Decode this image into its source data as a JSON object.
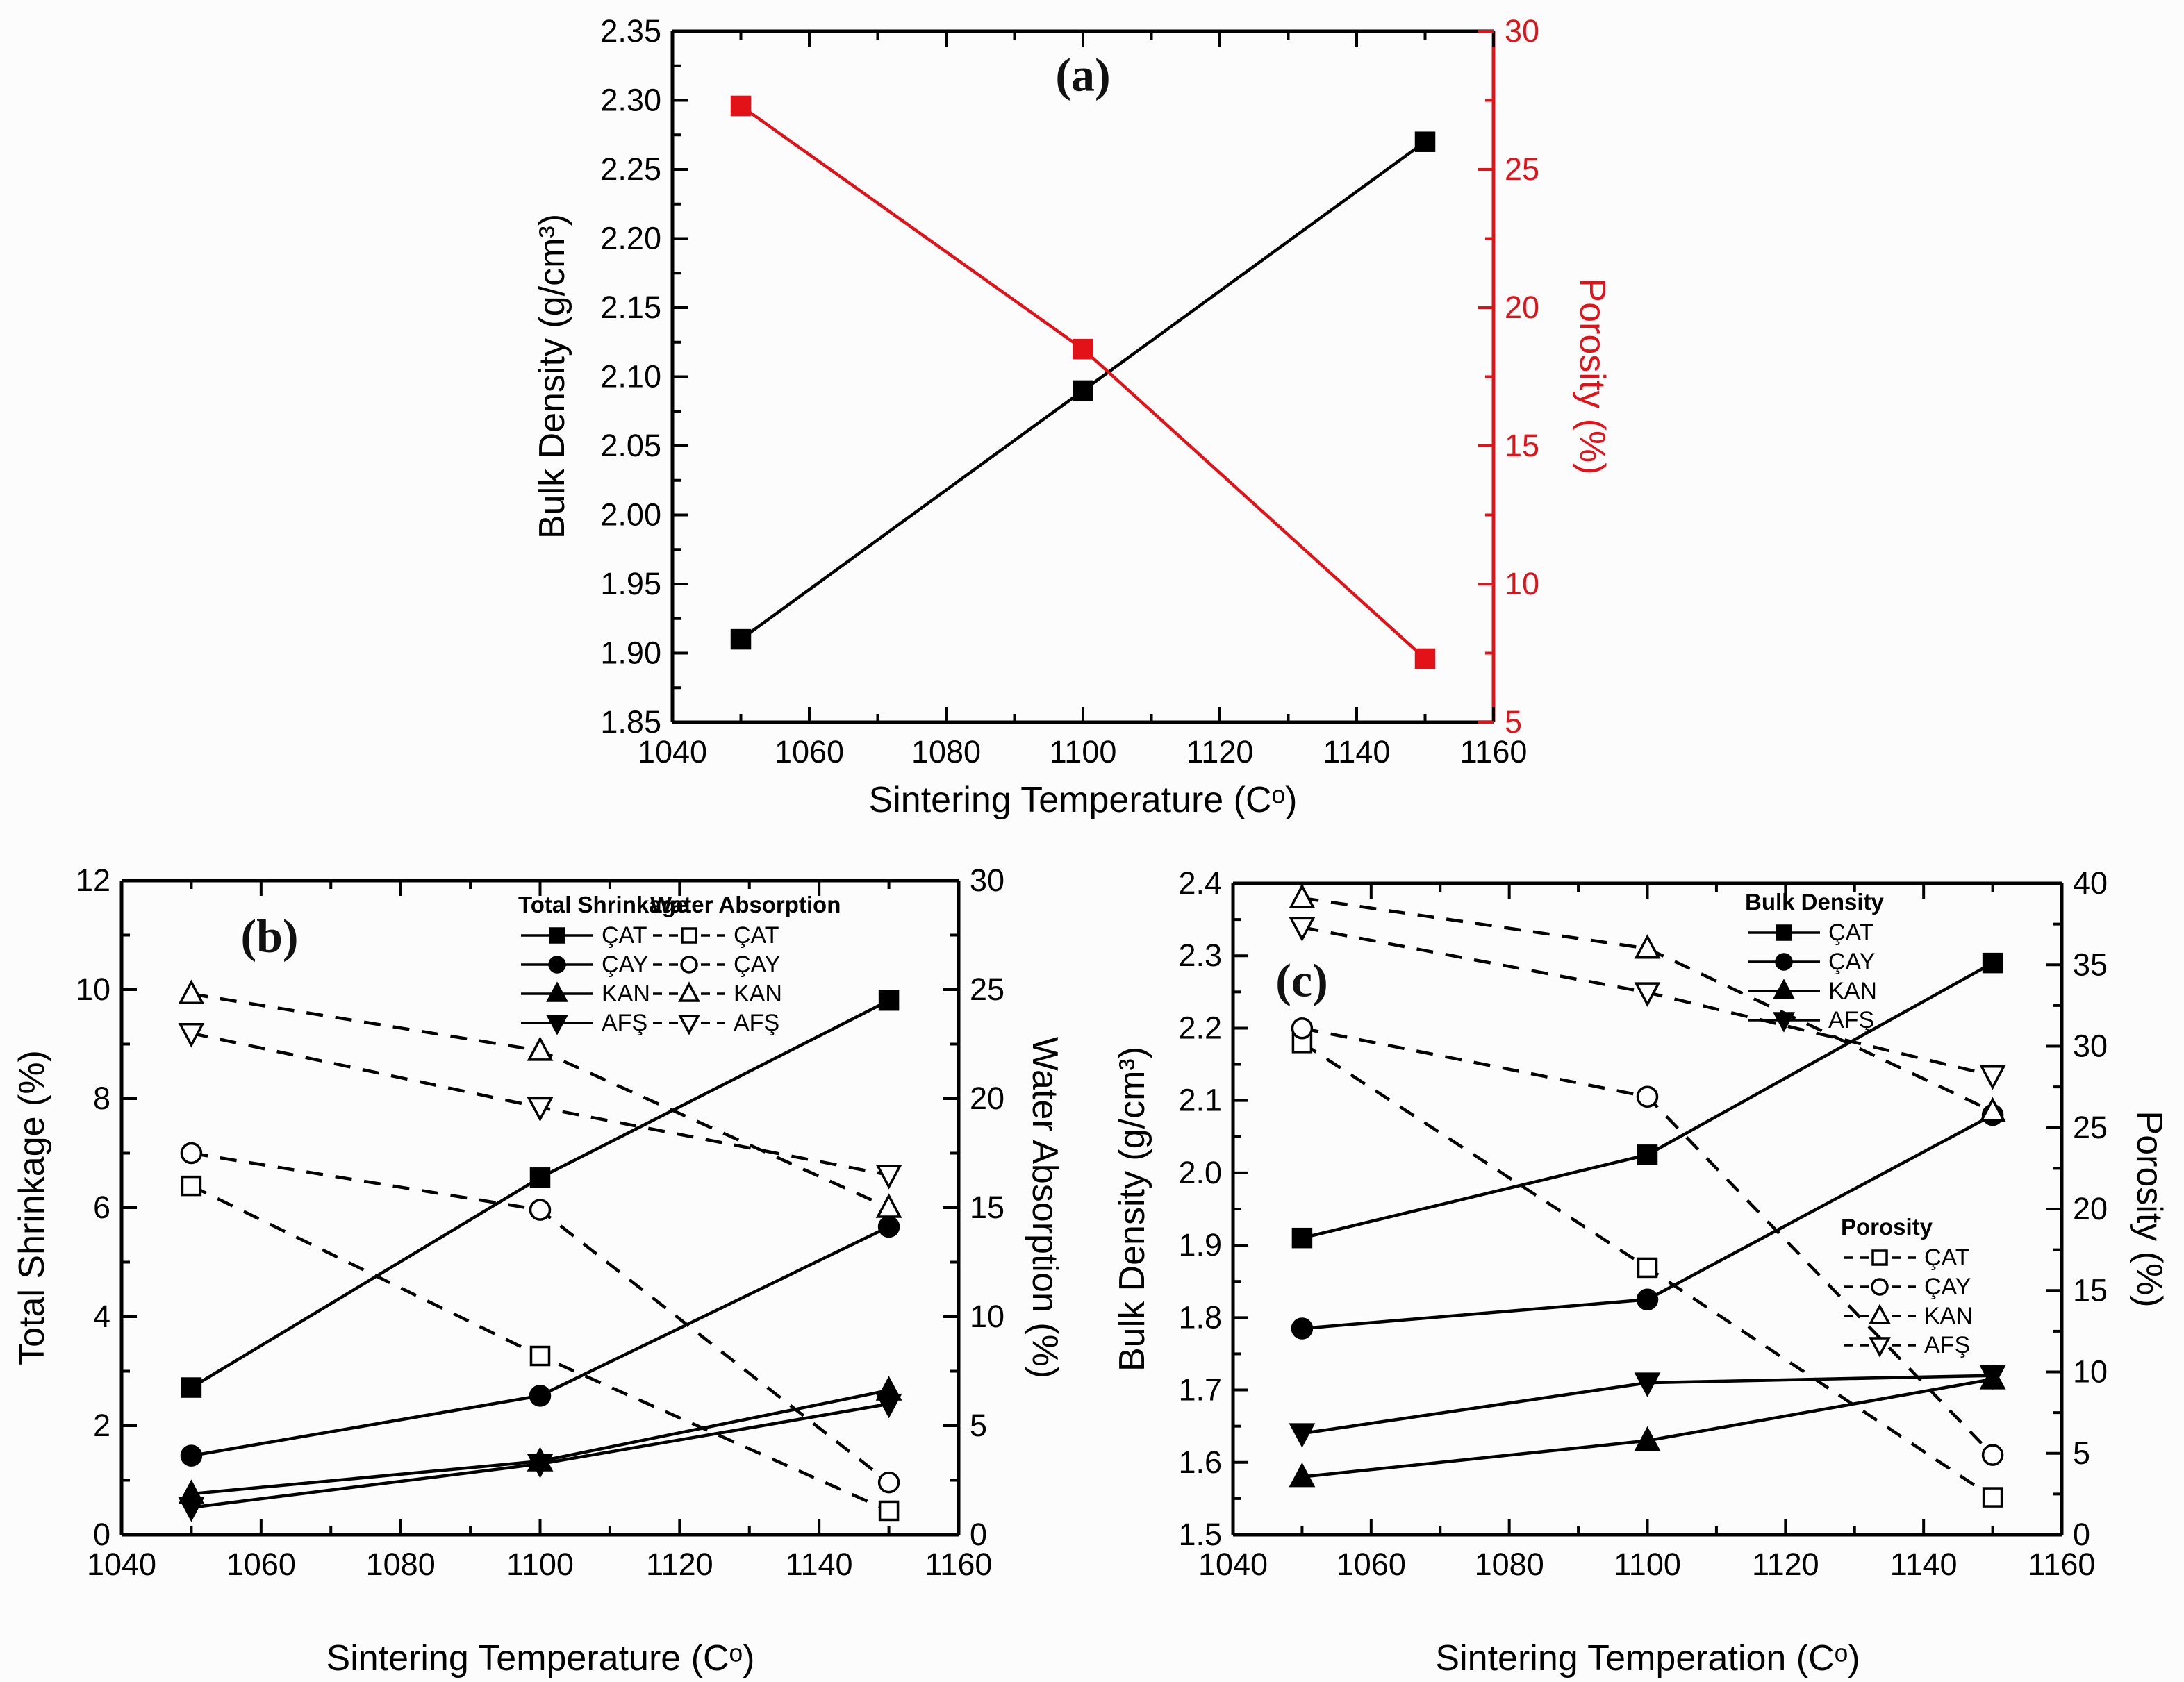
{
  "accent_red": "#e31219",
  "ink_black": "#000000",
  "chart_data": [
    {
      "id": "a",
      "type": "line",
      "panel_label": "(a)",
      "xlabel": "Sintering Temperature (Cᵒ)",
      "x_range": [
        1040,
        1160
      ],
      "x_ticks": [
        "1040",
        "1060",
        "1080",
        "1100",
        "1120",
        "1140",
        "1160"
      ],
      "x_minor_step": 10,
      "x": [
        1050,
        1100,
        1150
      ],
      "left_axis": {
        "label": "Bulk Density (g/cm³)",
        "range": [
          1.85,
          2.35
        ],
        "ticks": [
          "1.85",
          "1.90",
          "1.95",
          "2.00",
          "2.05",
          "2.10",
          "2.15",
          "2.20",
          "2.25",
          "2.30",
          "2.35"
        ],
        "minor_step": 0.025,
        "color": "#000000"
      },
      "right_axis": {
        "label": "Porosity (%)",
        "range": [
          5,
          30
        ],
        "ticks": [
          "5",
          "10",
          "15",
          "20",
          "25",
          "30"
        ],
        "minor_step": 2.5,
        "color": "#e31219"
      },
      "series": [
        {
          "name": "Bulk Density",
          "axis": "left",
          "color": "#000000",
          "marker": "square",
          "marker_fill": "filled",
          "line": "solid",
          "values": [
            1.91,
            2.09,
            2.27
          ]
        },
        {
          "name": "Porosity",
          "axis": "right",
          "color": "#e31219",
          "marker": "square",
          "marker_fill": "filled",
          "line": "solid",
          "values": [
            27.3,
            18.5,
            7.3
          ]
        }
      ],
      "legends": []
    },
    {
      "id": "b",
      "type": "line",
      "panel_label": "(b)",
      "xlabel": "Sintering Temperature (Cᵒ)",
      "x_range": [
        1040,
        1160
      ],
      "x_ticks": [
        "1040",
        "1060",
        "1080",
        "1100",
        "1120",
        "1140",
        "1160"
      ],
      "x_minor_step": 10,
      "x": [
        1050,
        1100,
        1150
      ],
      "left_axis": {
        "label": "Total Shrinkage (%)",
        "range": [
          0,
          12
        ],
        "ticks": [
          "0",
          "2",
          "4",
          "6",
          "8",
          "10",
          "12"
        ],
        "minor_step": 1,
        "color": "#000000"
      },
      "right_axis": {
        "label": "Water Absorption (%)",
        "range": [
          0,
          30
        ],
        "ticks": [
          "0",
          "5",
          "10",
          "15",
          "20",
          "25",
          "30"
        ],
        "minor_step": 2.5,
        "color": "#000000"
      },
      "series": [
        {
          "name": "ÇAT Total Shrinkage",
          "axis": "left",
          "color": "#000000",
          "marker": "square",
          "marker_fill": "filled",
          "line": "solid",
          "values": [
            2.7,
            6.55,
            9.8
          ]
        },
        {
          "name": "ÇAY Total Shrinkage",
          "axis": "left",
          "color": "#000000",
          "marker": "circle",
          "marker_fill": "filled",
          "line": "solid",
          "values": [
            1.45,
            2.55,
            5.65
          ]
        },
        {
          "name": "KAN Total Shrinkage",
          "axis": "left",
          "color": "#000000",
          "marker": "triangle-up",
          "marker_fill": "filled",
          "line": "solid",
          "values": [
            0.75,
            1.35,
            2.65
          ]
        },
        {
          "name": "AFŞ Total Shrinkage",
          "axis": "left",
          "color": "#000000",
          "marker": "triangle-down",
          "marker_fill": "filled",
          "line": "solid",
          "values": [
            0.5,
            1.3,
            2.4
          ]
        },
        {
          "name": "ÇAT Water Absorption",
          "axis": "right",
          "color": "#000000",
          "marker": "square",
          "marker_fill": "open",
          "line": "dashed",
          "values": [
            16.0,
            8.2,
            1.1
          ]
        },
        {
          "name": "ÇAY Water Absorption",
          "axis": "right",
          "color": "#000000",
          "marker": "circle",
          "marker_fill": "open",
          "line": "dashed",
          "values": [
            17.5,
            14.9,
            2.4
          ]
        },
        {
          "name": "KAN Water Absorption",
          "axis": "right",
          "color": "#000000",
          "marker": "triangle-up",
          "marker_fill": "open",
          "line": "dashed",
          "values": [
            24.8,
            22.2,
            15.0
          ]
        },
        {
          "name": "AFŞ Water Absorption",
          "axis": "right",
          "color": "#000000",
          "marker": "triangle-down",
          "marker_fill": "open",
          "line": "dashed",
          "values": [
            23.0,
            19.6,
            16.5
          ]
        }
      ],
      "legends": [
        {
          "title": "Total Shrinkage",
          "entries": [
            {
              "label": "ÇAT",
              "marker": "square",
              "marker_fill": "filled",
              "line": "solid"
            },
            {
              "label": "ÇAY",
              "marker": "circle",
              "marker_fill": "filled",
              "line": "solid"
            },
            {
              "label": "KAN",
              "marker": "triangle-up",
              "marker_fill": "filled",
              "line": "solid"
            },
            {
              "label": "AFŞ",
              "marker": "triangle-down",
              "marker_fill": "filled",
              "line": "solid"
            }
          ]
        },
        {
          "title": "Water Absorption",
          "entries": [
            {
              "label": "ÇAT",
              "marker": "square",
              "marker_fill": "open",
              "line": "dashed"
            },
            {
              "label": "ÇAY",
              "marker": "circle",
              "marker_fill": "open",
              "line": "dashed"
            },
            {
              "label": "KAN",
              "marker": "triangle-up",
              "marker_fill": "open",
              "line": "dashed"
            },
            {
              "label": "AFŞ",
              "marker": "triangle-down",
              "marker_fill": "open",
              "line": "dashed"
            }
          ]
        }
      ]
    },
    {
      "id": "c",
      "type": "line",
      "panel_label": "(c)",
      "xlabel": "Sintering Temperation (Cᵒ)",
      "x_range": [
        1040,
        1160
      ],
      "x_ticks": [
        "1040",
        "1060",
        "1080",
        "1100",
        "1120",
        "1140",
        "1160"
      ],
      "x_minor_step": 10,
      "x": [
        1050,
        1100,
        1150
      ],
      "left_axis": {
        "label": "Bulk Density (g/cm³)",
        "range": [
          1.5,
          2.4
        ],
        "ticks": [
          "1.5",
          "1.6",
          "1.7",
          "1.8",
          "1.9",
          "2.0",
          "2.1",
          "2.2",
          "2.3",
          "2.4"
        ],
        "minor_step": 0.05,
        "color": "#000000"
      },
      "right_axis": {
        "label": "Porosity (%)",
        "range": [
          0,
          40
        ],
        "ticks": [
          "0",
          "5",
          "10",
          "15",
          "20",
          "25",
          "30",
          "35",
          "40"
        ],
        "minor_step": 2.5,
        "color": "#000000"
      },
      "series": [
        {
          "name": "ÇAT Bulk Density",
          "axis": "left",
          "color": "#000000",
          "marker": "square",
          "marker_fill": "filled",
          "line": "solid",
          "values": [
            1.91,
            2.025,
            2.29
          ]
        },
        {
          "name": "ÇAY Bulk Density",
          "axis": "left",
          "color": "#000000",
          "marker": "circle",
          "marker_fill": "filled",
          "line": "solid",
          "values": [
            1.785,
            1.825,
            2.08
          ]
        },
        {
          "name": "KAN Bulk Density",
          "axis": "left",
          "color": "#000000",
          "marker": "triangle-up",
          "marker_fill": "filled",
          "line": "solid",
          "values": [
            1.58,
            1.63,
            1.715
          ]
        },
        {
          "name": "AFŞ Bulk Density",
          "axis": "left",
          "color": "#000000",
          "marker": "triangle-down",
          "marker_fill": "filled",
          "line": "solid",
          "values": [
            1.64,
            1.71,
            1.72
          ]
        },
        {
          "name": "ÇAT Porosity",
          "axis": "right",
          "color": "#000000",
          "marker": "square",
          "marker_fill": "open",
          "line": "dashed",
          "values": [
            30.2,
            16.4,
            2.3
          ]
        },
        {
          "name": "ÇAY Porosity",
          "axis": "right",
          "color": "#000000",
          "marker": "circle",
          "marker_fill": "open",
          "line": "dashed",
          "values": [
            31.1,
            26.9,
            4.9
          ]
        },
        {
          "name": "KAN Porosity",
          "axis": "right",
          "color": "#000000",
          "marker": "triangle-up",
          "marker_fill": "open",
          "line": "dashed",
          "values": [
            39.1,
            36.0,
            26.0
          ]
        },
        {
          "name": "AFŞ Porosity",
          "axis": "right",
          "color": "#000000",
          "marker": "triangle-down",
          "marker_fill": "open",
          "line": "dashed",
          "values": [
            37.3,
            33.3,
            28.2
          ]
        }
      ],
      "legends": [
        {
          "title": "Bulk Density",
          "entries": [
            {
              "label": "ÇAT",
              "marker": "square",
              "marker_fill": "filled",
              "line": "solid"
            },
            {
              "label": "ÇAY",
              "marker": "circle",
              "marker_fill": "filled",
              "line": "solid"
            },
            {
              "label": "KAN",
              "marker": "triangle-up",
              "marker_fill": "filled",
              "line": "solid"
            },
            {
              "label": "AFŞ",
              "marker": "triangle-down",
              "marker_fill": "filled",
              "line": "solid"
            }
          ]
        },
        {
          "title": "Porosity",
          "entries": [
            {
              "label": "ÇAT",
              "marker": "square",
              "marker_fill": "open",
              "line": "dashed"
            },
            {
              "label": "ÇAY",
              "marker": "circle",
              "marker_fill": "open",
              "line": "dashed"
            },
            {
              "label": "KAN",
              "marker": "triangle-up",
              "marker_fill": "open",
              "line": "dashed"
            },
            {
              "label": "AFŞ",
              "marker": "triangle-down",
              "marker_fill": "open",
              "line": "dashed"
            }
          ]
        }
      ]
    }
  ]
}
